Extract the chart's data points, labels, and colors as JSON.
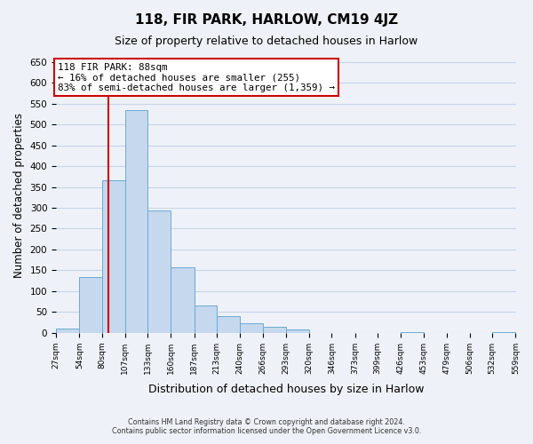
{
  "title": "118, FIR PARK, HARLOW, CM19 4JZ",
  "subtitle": "Size of property relative to detached houses in Harlow",
  "xlabel": "Distribution of detached houses by size in Harlow",
  "ylabel": "Number of detached properties",
  "bar_edges": [
    27,
    54,
    80,
    107,
    133,
    160,
    187,
    213,
    240,
    266,
    293,
    320,
    346,
    373,
    399,
    426,
    453,
    479,
    506,
    532,
    559
  ],
  "bar_heights": [
    10,
    133,
    365,
    535,
    293,
    158,
    65,
    40,
    22,
    15,
    8,
    0,
    0,
    0,
    0,
    1,
    0,
    0,
    0,
    1
  ],
  "bar_color": "#c5d8ee",
  "bar_edgecolor": "#6aaad4",
  "property_line_x": 88,
  "property_line_color": "#cc0000",
  "annotation_title": "118 FIR PARK: 88sqm",
  "annotation_line1": "← 16% of detached houses are smaller (255)",
  "annotation_line2": "83% of semi-detached houses are larger (1,359) →",
  "ylim": [
    0,
    660
  ],
  "yticks": [
    0,
    50,
    100,
    150,
    200,
    250,
    300,
    350,
    400,
    450,
    500,
    550,
    600,
    650
  ],
  "tick_labels": [
    "27sqm",
    "54sqm",
    "80sqm",
    "107sqm",
    "133sqm",
    "160sqm",
    "187sqm",
    "213sqm",
    "240sqm",
    "266sqm",
    "293sqm",
    "320sqm",
    "346sqm",
    "373sqm",
    "399sqm",
    "426sqm",
    "453sqm",
    "479sqm",
    "506sqm",
    "532sqm",
    "559sqm"
  ],
  "footer_line1": "Contains HM Land Registry data © Crown copyright and database right 2024.",
  "footer_line2": "Contains public sector information licensed under the Open Government Licence v3.0.",
  "grid_color": "#c8d4e8",
  "background_color": "#eef2f8"
}
